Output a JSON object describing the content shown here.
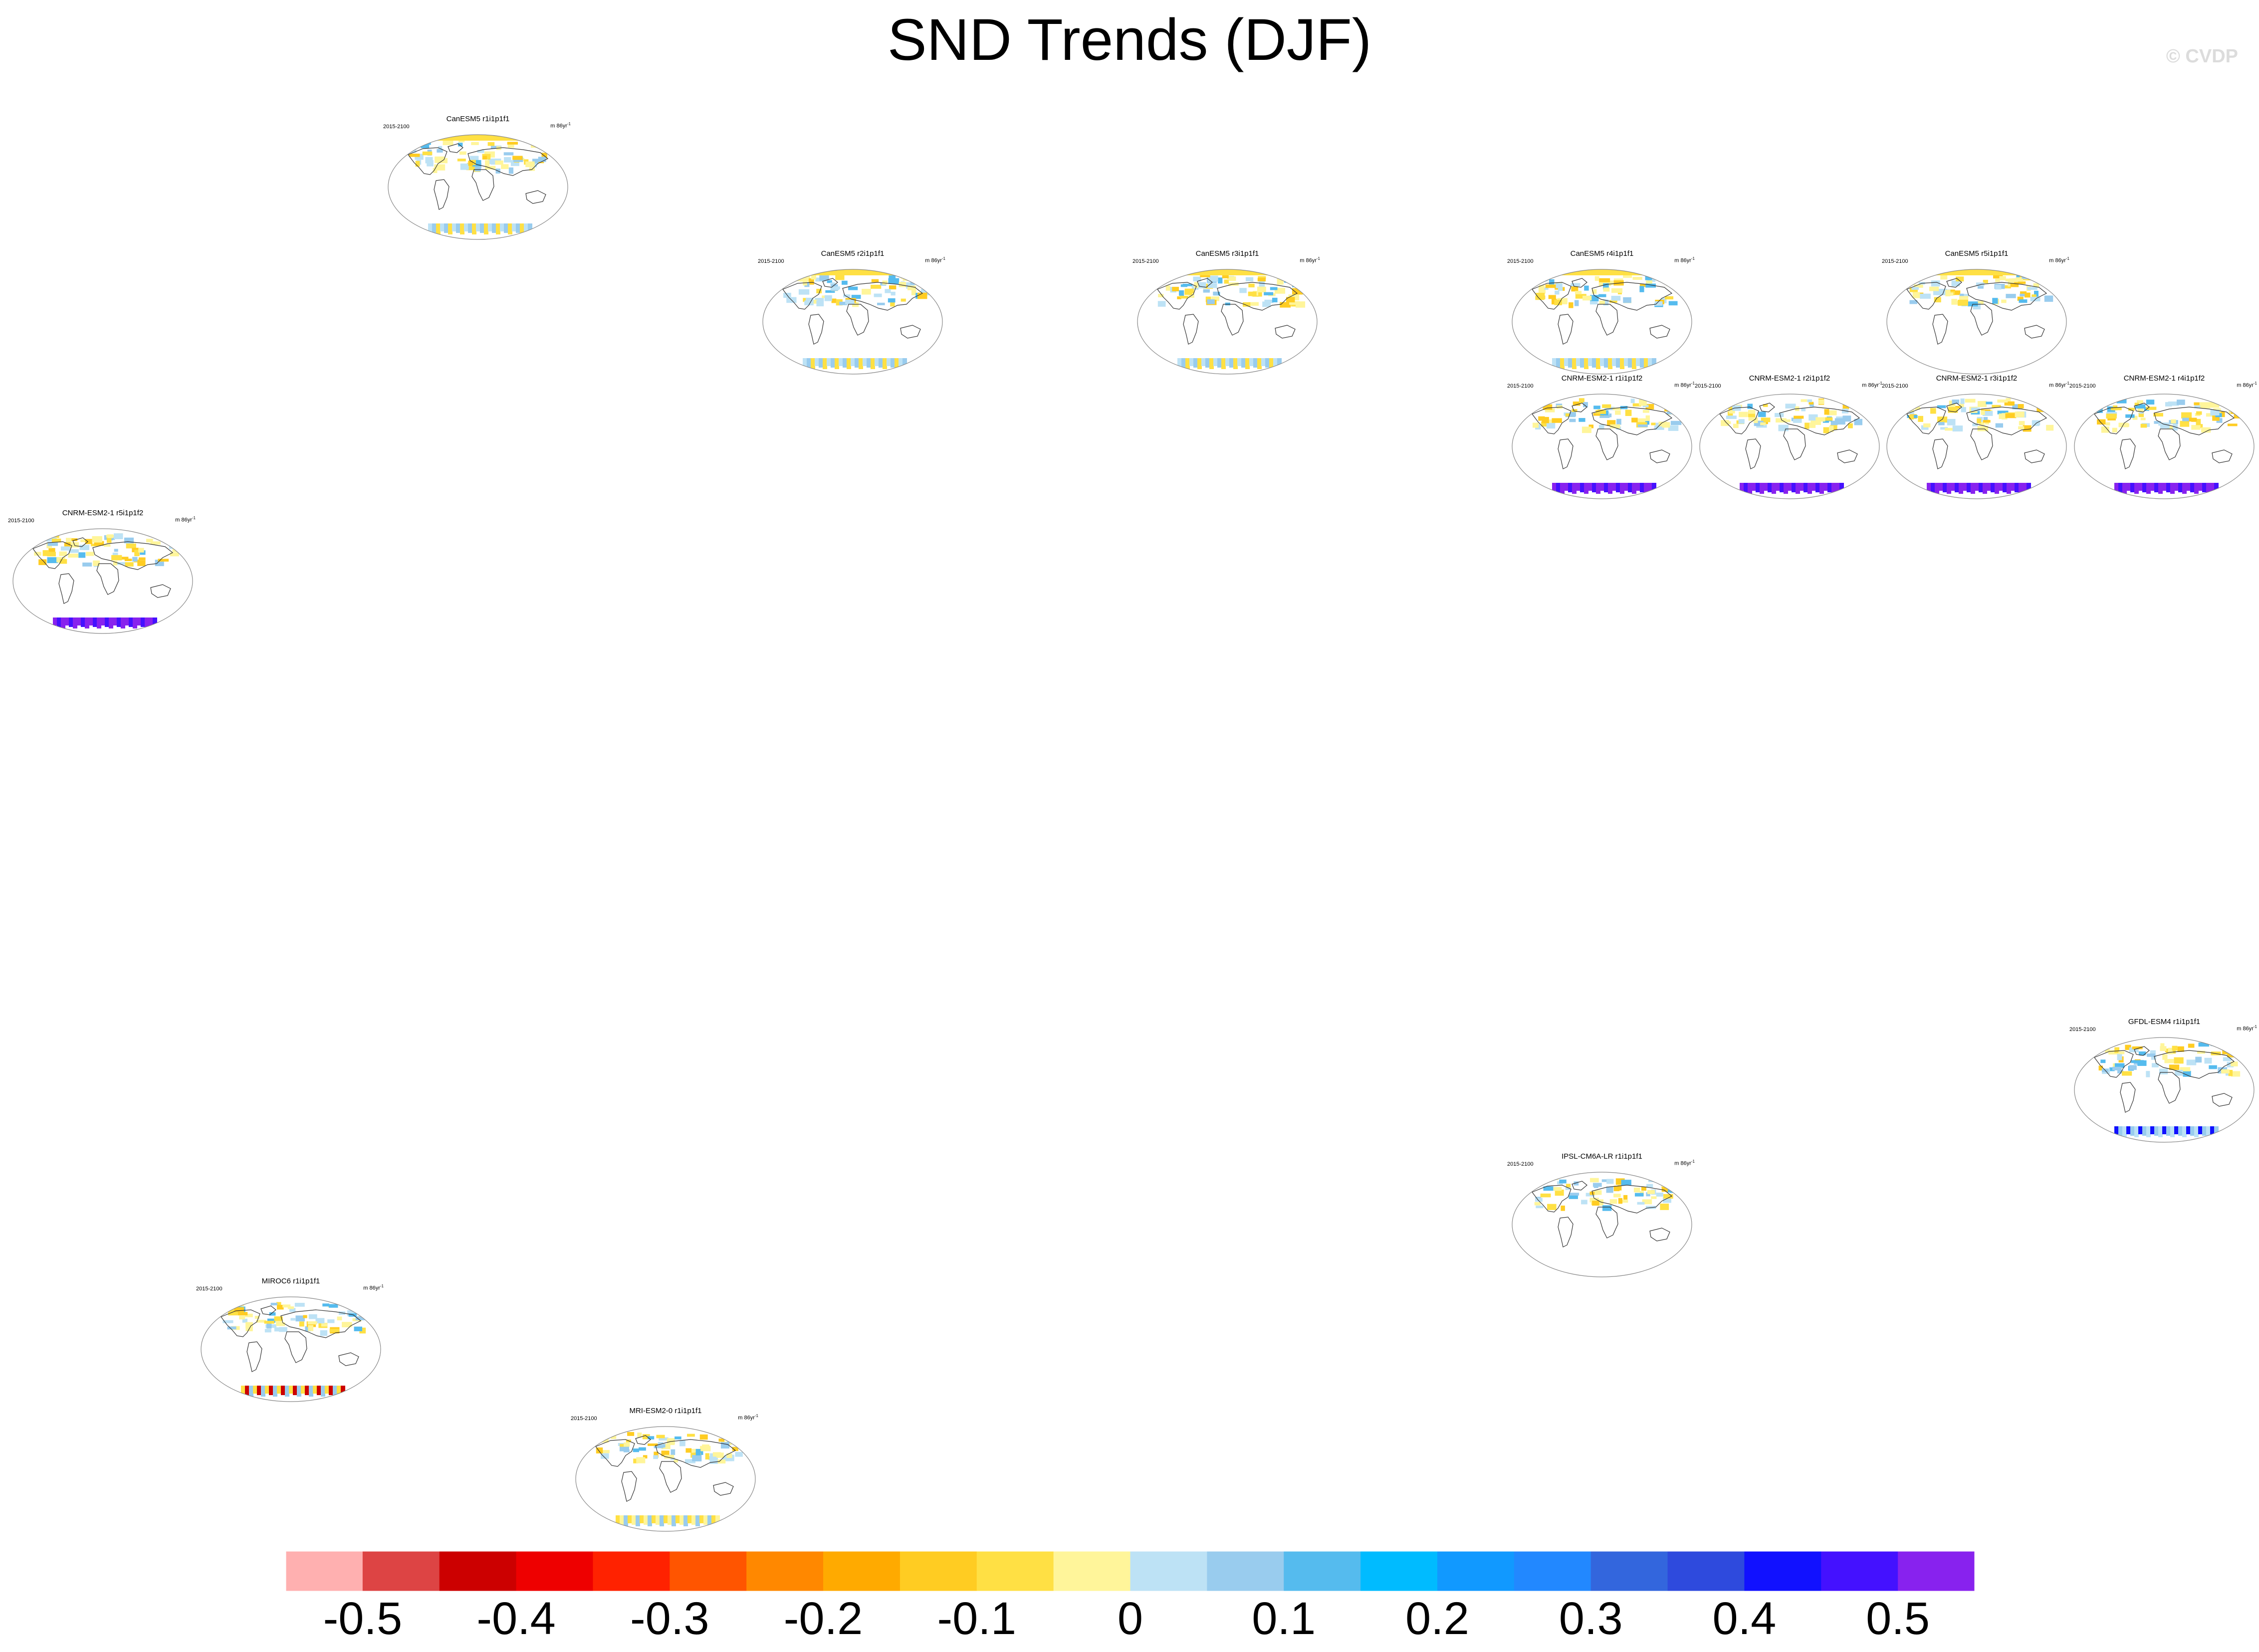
{
  "title": "SND Trends (DJF)",
  "watermark": "© CVDP",
  "panels": [
    {
      "name": "CanESM5 r1i1p1f1",
      "period": "2015-2100",
      "units": "m 86yr",
      "col": 0,
      "row": 0,
      "antarctic": "cool"
    },
    {
      "name": "CanESM5 r2i1p1f1",
      "period": "2015-2100",
      "units": "m 86yr",
      "col": 1,
      "row": 1,
      "antarctic": "cool"
    },
    {
      "name": "CanESM5 r3i1p1f1",
      "period": "2015-2100",
      "units": "m 86yr",
      "col": 2,
      "row": 1,
      "antarctic": "cool"
    },
    {
      "name": "CanESM5 r4i1p1f1",
      "period": "2015-2100",
      "units": "m 86yr",
      "col": 3,
      "row": 1,
      "antarctic": "cool"
    },
    {
      "name": "CanESM5 r5i1p1f1",
      "period": "2015-2100",
      "units": "m 86yr",
      "col": 4,
      "row": 1,
      "antarctic": "none"
    },
    {
      "name": "CNRM-ESM2-1 r1i1p1f2",
      "period": "2015-2100",
      "units": "m 86yr",
      "col": 3,
      "row": 2,
      "antarctic": "purple"
    },
    {
      "name": "CNRM-ESM2-1 r2i1p1f2",
      "period": "2015-2100",
      "units": "m 86yr",
      "col": 4,
      "row": 2,
      "antarctic": "purple"
    },
    {
      "name": "CNRM-ESM2-1 r3i1p1f2",
      "period": "2015-2100",
      "units": "m 86yr",
      "col": 5,
      "row": 2,
      "antarctic": "purple"
    },
    {
      "name": "CNRM-ESM2-1 r4i1p1f2",
      "period": "2015-2100",
      "units": "m 86yr",
      "col": 6,
      "row": 2,
      "antarctic": "purple"
    },
    {
      "name": "CNRM-ESM2-1 r5i1p1f2",
      "period": "2015-2100",
      "units": "m 86yr",
      "col": 7,
      "row": 3,
      "antarctic": "purple"
    },
    {
      "name": "GFDL-ESM4 r1i1p1f1",
      "period": "2015-2100",
      "units": "m 86yr",
      "col": 8,
      "row": 4,
      "antarctic": "sparse"
    },
    {
      "name": "IPSL-CM6A-LR r1i1p1f1",
      "period": "2015-2100",
      "units": "m 86yr",
      "col": 9,
      "row": 5,
      "antarctic": "none"
    },
    {
      "name": "MIROC6 r1i1p1f1",
      "period": "2015-2100",
      "units": "m 86yr",
      "col": 10,
      "row": 6,
      "antarctic": "mixed"
    },
    {
      "name": "MRI-ESM2-0 r1i1p1f1",
      "period": "2015-2100",
      "units": "m 86yr",
      "col": 11,
      "row": 7,
      "antarctic": "warm"
    }
  ],
  "chart_data": {
    "type": "heatmap",
    "title": "SND Trends (DJF)",
    "colorbar": {
      "levels": [
        -0.5,
        -0.45,
        -0.4,
        -0.35,
        -0.3,
        -0.25,
        -0.2,
        -0.15,
        -0.1,
        -0.05,
        0,
        0.05,
        0.1,
        0.15,
        0.2,
        0.25,
        0.3,
        0.35,
        0.4,
        0.45,
        0.5
      ],
      "tick_labels": [
        "-0.5",
        "-0.4",
        "-0.3",
        "-0.2",
        "-0.1",
        "0",
        "0.1",
        "0.2",
        "0.3",
        "0.4",
        "0.5"
      ],
      "tick_values": [
        -0.5,
        -0.4,
        -0.3,
        -0.2,
        -0.1,
        0,
        0.1,
        0.2,
        0.3,
        0.4,
        0.5
      ],
      "colors": [
        "#ffb0b0",
        "#dd4444",
        "#cc0000",
        "#ee0000",
        "#ff2200",
        "#ff5500",
        "#ff8800",
        "#ffaa00",
        "#ffcc22",
        "#ffe044",
        "#fff59a",
        "#bde2f5",
        "#99ccee",
        "#55bbee",
        "#00bbff",
        "#1199ff",
        "#2288ff",
        "#3366dd",
        "#2e4add",
        "#1111ff",
        "#4411ff",
        "#8822ee"
      ]
    }
  }
}
